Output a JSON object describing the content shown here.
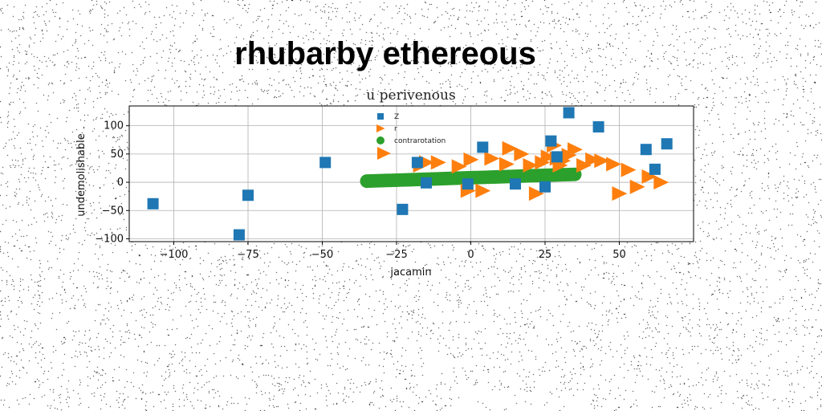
{
  "colors": {
    "background": "#ffffff",
    "noise": "#000000",
    "grid": "#b0b0b0",
    "series_z": "#1f77b4",
    "series_r": "#ff7f0e",
    "series_contrarotation": "#2ca02c"
  },
  "chart_data": {
    "type": "scatter",
    "title": "rhubarby ethereous",
    "subtitle": "u perivenous",
    "xlabel": "jacamin",
    "ylabel": "undemolishable",
    "xlim": [
      -115,
      75
    ],
    "ylim": [
      -105,
      135
    ],
    "xticks": [
      -100,
      -75,
      -50,
      -25,
      0,
      25,
      50
    ],
    "yticks": [
      -100,
      -50,
      0,
      50,
      100
    ],
    "xtick_labels": [
      "−100",
      "−75",
      "−50",
      "−25",
      "0",
      "25",
      "50"
    ],
    "ytick_labels": [
      "−100",
      "−50",
      "0",
      "50",
      "100"
    ],
    "grid": true,
    "legend_position": "upper-center",
    "series": [
      {
        "name": "Z",
        "marker": "square",
        "x": [
          -107,
          -78,
          -75,
          -49,
          -23,
          -18,
          -15,
          -1,
          4,
          15,
          25,
          27,
          29,
          33,
          43,
          59,
          62,
          66
        ],
        "y": [
          -38,
          -93,
          -23,
          35,
          -48,
          35,
          -1,
          -3,
          62,
          -3,
          -8,
          73,
          45,
          123,
          98,
          58,
          23,
          68
        ]
      },
      {
        "name": "r",
        "marker": "triangle-right",
        "x": [
          -17,
          -15,
          -11,
          -4,
          -1,
          0,
          4,
          7,
          12,
          13,
          17,
          20,
          22,
          24,
          26,
          28,
          29,
          30,
          31,
          33,
          35,
          38,
          41,
          44,
          48,
          50,
          53,
          56,
          60,
          64
        ],
        "y": [
          30,
          35,
          35,
          28,
          -15,
          40,
          -15,
          42,
          32,
          60,
          50,
          30,
          -20,
          35,
          45,
          65,
          42,
          30,
          38,
          48,
          58,
          30,
          40,
          38,
          32,
          -20,
          22,
          -8,
          10,
          0
        ],
        "legend_extra_marker": "triangle-right"
      },
      {
        "name": "contrarotation",
        "marker": "circle",
        "x_range": [
          -35,
          35
        ],
        "y_range": [
          2,
          14
        ],
        "n_points": 71
      }
    ]
  }
}
